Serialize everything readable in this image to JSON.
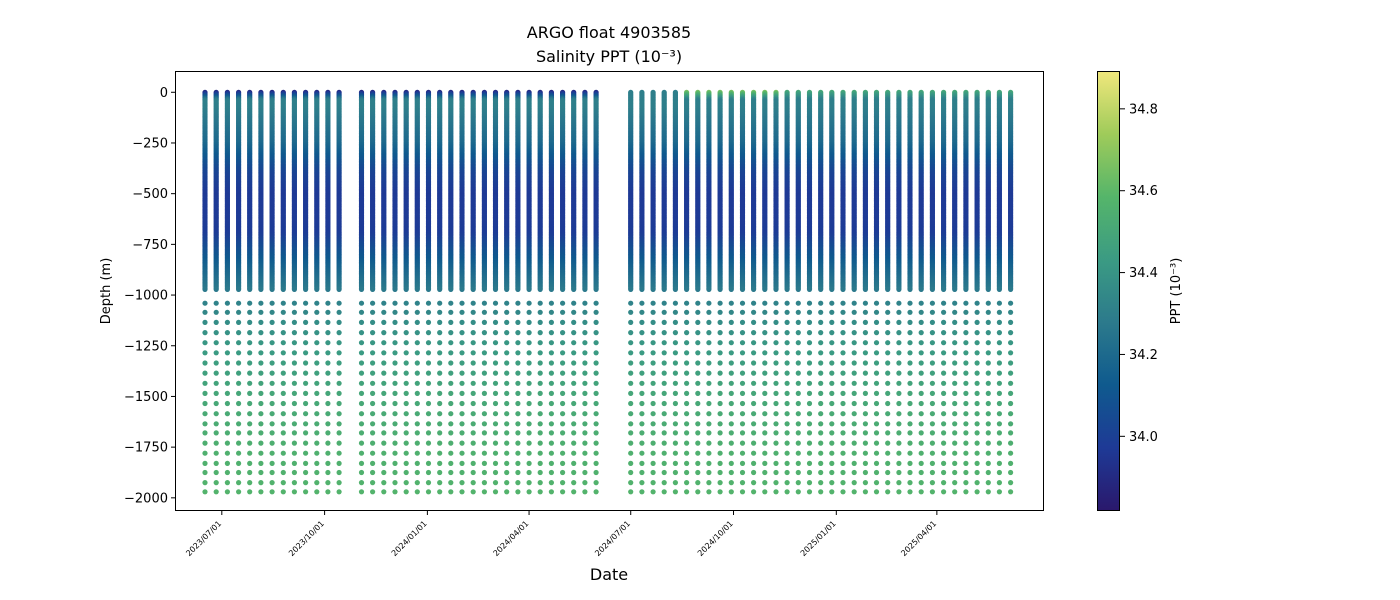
{
  "chart_data": {
    "type": "scatter",
    "title": "ARGO float 4903585",
    "subtitle": "Salinity PPT (10⁻³)",
    "xlabel": "Date",
    "ylabel": "Depth (m)",
    "ylim": [
      -2060,
      100
    ],
    "xlim": [
      "2023-05-21",
      "2025-07-05"
    ],
    "y_ticks": [
      0,
      -250,
      -500,
      -750,
      -1000,
      -1250,
      -1500,
      -1750,
      -2000
    ],
    "y_tick_labels": [
      "0",
      "−250",
      "−500",
      "−750",
      "−1000",
      "−1250",
      "−1500",
      "−1750",
      "−2000"
    ],
    "x_ticks": [
      "2023-07-01",
      "2023-10-01",
      "2024-01-01",
      "2024-04-01",
      "2024-07-01",
      "2024-10-01",
      "2025-01-01",
      "2025-04-01"
    ],
    "x_tick_labels": [
      "2023/07/01",
      "2023/10/01",
      "2024/01/01",
      "2024/04/01",
      "2024/07/01",
      "2024/10/01",
      "2025/01/01",
      "2025/04/01"
    ],
    "grid": false,
    "colormap": "haline",
    "colorbar": {
      "label": "PPT (10⁻³)",
      "range": [
        33.82,
        34.89
      ],
      "ticks": [
        34.0,
        34.2,
        34.4,
        34.6,
        34.8
      ],
      "tick_labels": [
        "34.0",
        "34.2",
        "34.4",
        "34.6",
        "34.8"
      ],
      "colors": [
        "#2a186c",
        "#1e3a96",
        "#0f5a8e",
        "#2c7a8c",
        "#3b9b83",
        "#55b56a",
        "#9fcb5a",
        "#f0e77c"
      ]
    },
    "profiles": {
      "segments": [
        {
          "start": "2023-06-16",
          "count": 13,
          "interval_days": 10
        },
        {
          "start": "2023-11-03",
          "count": 22,
          "interval_days": 10
        },
        {
          "start": "2024-07-01",
          "count": 35,
          "interval_days": 10
        }
      ],
      "deep_levels_m": [
        -1040,
        -1085,
        -1135,
        -1185,
        -1235,
        -1285,
        -1335,
        -1385,
        -1435,
        -1485,
        -1535,
        -1585,
        -1635,
        -1680,
        -1730,
        -1780,
        -1830,
        -1875,
        -1925,
        -1970
      ],
      "salinity_profile": [
        {
          "depth": 0,
          "salinity": 34.3
        },
        {
          "depth": -80,
          "salinity": 34.3
        },
        {
          "depth": -250,
          "salinity": 34.2
        },
        {
          "depth": -400,
          "salinity": 34.02
        },
        {
          "depth": -500,
          "salinity": 33.97
        },
        {
          "depth": -700,
          "salinity": 33.98
        },
        {
          "depth": -800,
          "salinity": 34.1
        },
        {
          "depth": -1000,
          "salinity": 34.3
        },
        {
          "depth": -1250,
          "salinity": 34.42
        },
        {
          "depth": -1500,
          "salinity": 34.5
        },
        {
          "depth": -1750,
          "salinity": 34.55
        },
        {
          "depth": -1970,
          "salinity": 34.57
        }
      ],
      "surface_salinity_by_period": [
        {
          "from": "2023-06-16",
          "to": "2024-06-30",
          "salinity": 33.9
        },
        {
          "from": "2024-07-01",
          "to": "2024-08-10",
          "salinity": 34.3
        },
        {
          "from": "2024-08-11",
          "to": "2024-11-15",
          "salinity": 34.65
        },
        {
          "from": "2024-11-16",
          "to": "2025-07-05",
          "salinity": 34.5
        }
      ]
    }
  }
}
